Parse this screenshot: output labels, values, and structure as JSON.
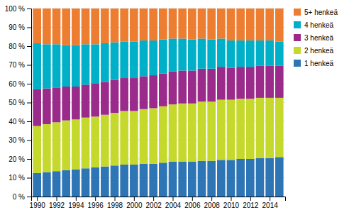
{
  "chart_data": {
    "type": "bar",
    "stacked": true,
    "grid": true,
    "legend": "right",
    "x": [
      1990,
      1991,
      1992,
      1993,
      1994,
      1995,
      1996,
      1997,
      1998,
      1999,
      2000,
      2001,
      2002,
      2003,
      2004,
      2005,
      2006,
      2007,
      2008,
      2009,
      2010,
      2011,
      2012,
      2013,
      2014,
      2015
    ],
    "series": [
      {
        "name": "1 henkeä",
        "color": "#2e75b6",
        "values": [
          12.5,
          13.0,
          13.5,
          14.0,
          14.5,
          15.0,
          15.5,
          16.0,
          16.5,
          17.0,
          17.0,
          17.5,
          17.5,
          18.0,
          18.5,
          18.5,
          18.5,
          19.0,
          19.0,
          19.5,
          19.5,
          20.0,
          20.0,
          20.5,
          20.5,
          21.0
        ]
      },
      {
        "name": "2 henkeä",
        "color": "#c5d92d",
        "values": [
          25.0,
          25.5,
          26.0,
          26.5,
          26.5,
          27.0,
          27.0,
          27.5,
          28.0,
          28.5,
          28.5,
          29.0,
          29.5,
          30.0,
          30.5,
          31.0,
          31.0,
          31.5,
          31.5,
          32.0,
          32.0,
          32.0,
          32.0,
          32.0,
          32.0,
          31.5
        ]
      },
      {
        "name": "3 henkeä",
        "color": "#9b2b8a",
        "values": [
          19.5,
          19.0,
          18.5,
          18.0,
          17.5,
          17.5,
          17.5,
          17.5,
          17.5,
          17.5,
          17.5,
          17.5,
          17.5,
          17.5,
          17.5,
          17.5,
          17.5,
          17.5,
          17.5,
          17.5,
          17.0,
          17.0,
          17.0,
          17.0,
          17.0,
          17.0
        ]
      },
      {
        "name": "4 henkeä",
        "color": "#00b0c8",
        "values": [
          24.5,
          23.5,
          23.0,
          22.0,
          22.0,
          21.5,
          21.0,
          20.5,
          20.0,
          19.5,
          19.5,
          19.0,
          18.5,
          18.0,
          17.5,
          17.0,
          16.5,
          16.0,
          15.5,
          15.0,
          14.5,
          14.0,
          14.0,
          13.5,
          13.5,
          13.0
        ]
      },
      {
        "name": "5+ henkeä",
        "color": "#ed7d31",
        "values": [
          18.5,
          19.0,
          19.0,
          19.5,
          19.5,
          19.0,
          19.0,
          18.5,
          18.0,
          17.5,
          17.5,
          17.0,
          17.0,
          16.5,
          16.0,
          16.0,
          16.5,
          16.0,
          16.5,
          16.0,
          17.0,
          17.0,
          17.0,
          17.0,
          17.0,
          17.5
        ]
      }
    ],
    "xlim": [
      1989.4,
      2015.6
    ],
    "xticks": [
      1990,
      1992,
      1994,
      1996,
      1998,
      2000,
      2002,
      2004,
      2006,
      2008,
      2010,
      2012,
      2014
    ],
    "ylim": [
      0,
      100
    ],
    "yticks": [
      {
        "value": 0,
        "label": "0 %"
      },
      {
        "value": 10,
        "label": "10 %"
      },
      {
        "value": 20,
        "label": "20 %"
      },
      {
        "value": 30,
        "label": "30 %"
      },
      {
        "value": 40,
        "label": "40 %"
      },
      {
        "value": 50,
        "label": "50 %"
      },
      {
        "value": 60,
        "label": "60 %"
      },
      {
        "value": 70,
        "label": "70 %"
      },
      {
        "value": 80,
        "label": "80 %"
      },
      {
        "value": 90,
        "label": "90 %"
      },
      {
        "value": 100,
        "label": "100 %"
      }
    ]
  }
}
